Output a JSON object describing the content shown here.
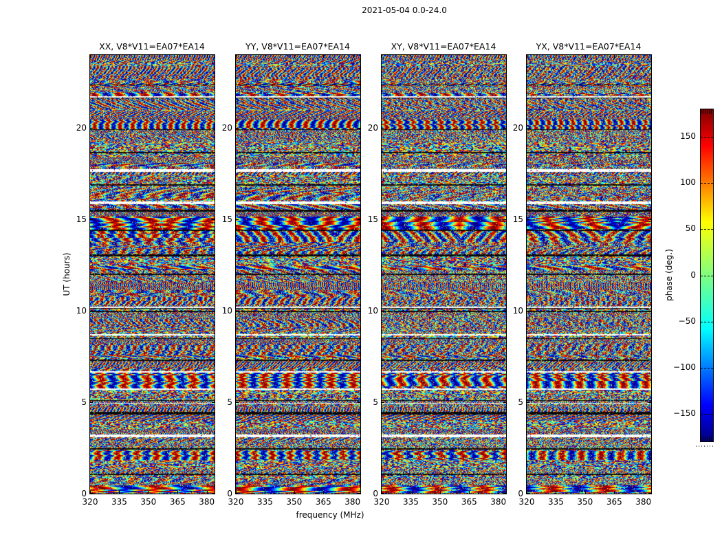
{
  "figure": {
    "suptitle": "2021-05-04 0.0-24.0",
    "background": "#ffffff",
    "text_color": "#000000"
  },
  "chart_data": {
    "type": "heatmap",
    "description": "Four phase-vs-(frequency,time) waterfall panels for the four polarization products of baseline V8*V11=EA07*EA14, observed 2021-05-04 over 0.0-24.0 UT. Pixel color encodes interferometric phase (-180 to 180 deg, jet colormap). Data is noise-like phase with horizontal time-band structure; white flagged time rows and black dropout rows are shared across all four panels.",
    "panels": [
      {
        "pol": "XX",
        "title": "XX, V8*V11=EA07*EA14"
      },
      {
        "pol": "YY",
        "title": "YY, V8*V11=EA07*EA14"
      },
      {
        "pol": "XY",
        "title": "XY, V8*V11=EA07*EA14"
      },
      {
        "pol": "YX",
        "title": "YX, V8*V11=EA07*EA14"
      }
    ],
    "xlabel": "frequency (MHz)",
    "ylabel": "UT (hours)",
    "xlim": [
      320,
      384
    ],
    "ylim": [
      0,
      24
    ],
    "xticks": [
      320,
      335,
      350,
      365,
      380
    ],
    "yticks": [
      0,
      5,
      10,
      15,
      20
    ],
    "colorbar": {
      "label": "phase (deg.)",
      "ticks": [
        150,
        100,
        50,
        0,
        -50,
        -100,
        -150
      ],
      "vmin": -180,
      "vmax": 180,
      "colormap": "jet",
      "stops": [
        {
          "pos": 0.0,
          "color": "#7f0000"
        },
        {
          "pos": 0.11,
          "color": "#ff0000"
        },
        {
          "pos": 0.34,
          "color": "#ffff00"
        },
        {
          "pos": 0.5,
          "color": "#80ff80"
        },
        {
          "pos": 0.66,
          "color": "#00ffff"
        },
        {
          "pos": 0.89,
          "color": "#0000ff"
        },
        {
          "pos": 1.0,
          "color": "#00007f"
        }
      ]
    },
    "features": {
      "white_rows_ut": [
        {
          "ut": 21.7,
          "h": 2
        },
        {
          "ut": 17.72,
          "h": 3
        },
        {
          "ut": 15.9,
          "h": 4
        },
        {
          "ut": 10.2,
          "h": 2
        },
        {
          "ut": 8.7,
          "h": 2
        },
        {
          "ut": 6.66,
          "h": 2
        },
        {
          "ut": 6.09,
          "h": 2
        },
        {
          "ut": 5.72,
          "h": 2
        },
        {
          "ut": 3.17,
          "h": 4
        }
      ],
      "black_rows_ut": [
        {
          "ut": 22.4,
          "h": 1
        },
        {
          "ut": 18.65,
          "h": 2
        },
        {
          "ut": 16.9,
          "h": 2
        },
        {
          "ut": 15.5,
          "h": 2
        },
        {
          "ut": 14.4,
          "h": 2
        },
        {
          "ut": 13.05,
          "h": 3
        },
        {
          "ut": 12.0,
          "h": 2
        },
        {
          "ut": 9.97,
          "h": 2
        },
        {
          "ut": 7.3,
          "h": 2
        },
        {
          "ut": 4.44,
          "h": 2
        },
        {
          "ut": 2.44,
          "h": 2
        },
        {
          "ut": 1.05,
          "h": 2
        }
      ],
      "stripe_bands_ut": [
        {
          "hi": 23.4,
          "lo": 22.7,
          "fx": 16,
          "fy": 0.08,
          "noise": 0.3
        },
        {
          "hi": 20.45,
          "lo": 19.95,
          "fx": 9,
          "fy": 0,
          "noise": 0.08
        },
        {
          "hi": 15.15,
          "lo": 14.45,
          "fx": 3.5,
          "fy": 0.015,
          "noise": 0.06,
          "chevron": true
        },
        {
          "hi": 14.45,
          "lo": 13.75,
          "fx": 7,
          "fy": 0.03,
          "noise": 0.2,
          "chevron": true
        },
        {
          "hi": 10.75,
          "lo": 10.3,
          "fx": 12,
          "fy": 0.05,
          "noise": 0.3
        },
        {
          "hi": 8.2,
          "lo": 7.6,
          "fx": 10,
          "fy": 0.04,
          "noise": 0.35
        },
        {
          "hi": 6.7,
          "lo": 5.75,
          "fx": 5.5,
          "fy": 0,
          "noise": 0.1
        },
        {
          "hi": 2.35,
          "lo": 1.85,
          "fx": 6.5,
          "fy": 0,
          "noise": 0.12
        },
        {
          "hi": 0.45,
          "lo": 0.05,
          "fx": 2.5,
          "fy": 0.01,
          "noise": 0.08
        }
      ]
    },
    "noise_seed": 42
  }
}
